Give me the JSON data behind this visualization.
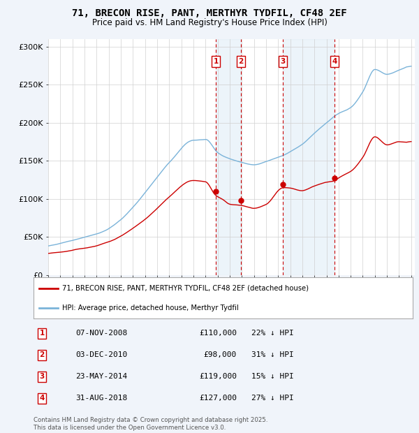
{
  "title": "71, BRECON RISE, PANT, MERTHYR TYDFIL, CF48 2EF",
  "subtitle": "Price paid vs. HM Land Registry's House Price Index (HPI)",
  "title_fontsize": 10,
  "subtitle_fontsize": 8.5,
  "hpi_color": "#7ab3d9",
  "price_color": "#cc0000",
  "shade_color": "#d6e8f5",
  "background_color": "#f0f4fa",
  "plot_bg": "#ffffff",
  "ylim": [
    0,
    310000
  ],
  "yticks": [
    0,
    50000,
    100000,
    150000,
    200000,
    250000,
    300000
  ],
  "ytick_labels": [
    "£0",
    "£50K",
    "£100K",
    "£150K",
    "£200K",
    "£250K",
    "£300K"
  ],
  "xmin": 1995,
  "xmax": 2025.3,
  "transactions": [
    {
      "num": 1,
      "date": "07-NOV-2008",
      "year": 2008.85,
      "price": 110000,
      "pct": "22%",
      "dir": "↓"
    },
    {
      "num": 2,
      "date": "03-DEC-2010",
      "year": 2010.92,
      "price": 98000,
      "pct": "31%",
      "dir": "↓"
    },
    {
      "num": 3,
      "date": "23-MAY-2014",
      "year": 2014.39,
      "price": 119000,
      "pct": "15%",
      "dir": "↓"
    },
    {
      "num": 4,
      "date": "31-AUG-2018",
      "year": 2018.66,
      "price": 127000,
      "pct": "27%",
      "dir": "↓"
    }
  ],
  "legend_label_price": "71, BRECON RISE, PANT, MERTHYR TYDFIL, CF48 2EF (detached house)",
  "legend_label_hpi": "HPI: Average price, detached house, Merthyr Tydfil",
  "footer": "Contains HM Land Registry data © Crown copyright and database right 2025.\nThis data is licensed under the Open Government Licence v3.0."
}
